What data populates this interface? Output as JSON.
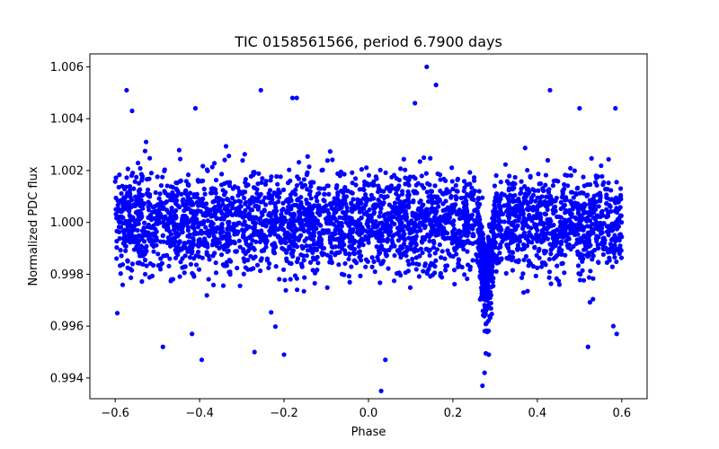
{
  "chart_data": {
    "type": "scatter",
    "title": "TIC 0158561566, period 6.7900 days",
    "xlabel": "Phase",
    "ylabel": "Normalized PDC flux",
    "xlim": [
      -0.66,
      0.66
    ],
    "ylim": [
      0.9932,
      1.0065
    ],
    "xticks": [
      -0.6,
      -0.4,
      -0.2,
      0.0,
      0.2,
      0.4,
      0.6
    ],
    "xtick_labels": [
      "−0.6",
      "−0.4",
      "−0.2",
      "0.0",
      "0.2",
      "0.4",
      "0.6"
    ],
    "yticks": [
      0.994,
      0.996,
      0.998,
      1.0,
      1.002,
      1.004,
      1.006
    ],
    "ytick_labels": [
      "0.994",
      "0.996",
      "0.998",
      "1.000",
      "1.002",
      "1.004",
      "1.006"
    ],
    "marker_color": "#0000ff",
    "series": [
      {
        "name": "PDC flux",
        "phase_range": [
          -0.6,
          0.6
        ],
        "baseline_flux": 1.0,
        "point_scatter_sigma": 0.001,
        "transit": {
          "center_phase": 0.28,
          "half_width_phase": 0.02,
          "depth": 0.0022
        },
        "notable_points": [
          {
            "x": -0.573,
            "y": 1.0051
          },
          {
            "x": -0.56,
            "y": 1.0043
          },
          {
            "x": -0.487,
            "y": 0.9952
          },
          {
            "x": -0.395,
            "y": 0.9947
          },
          {
            "x": -0.418,
            "y": 0.9957
          },
          {
            "x": -0.41,
            "y": 1.0044
          },
          {
            "x": -0.255,
            "y": 1.0051
          },
          {
            "x": -0.27,
            "y": 0.995
          },
          {
            "x": -0.2,
            "y": 0.9949
          },
          {
            "x": -0.17,
            "y": 1.0048
          },
          {
            "x": -0.18,
            "y": 1.0048
          },
          {
            "x": 0.03,
            "y": 0.9935
          },
          {
            "x": 0.04,
            "y": 0.9947
          },
          {
            "x": 0.138,
            "y": 1.006
          },
          {
            "x": 0.16,
            "y": 1.0053
          },
          {
            "x": 0.11,
            "y": 1.0046
          },
          {
            "x": 0.27,
            "y": 0.9937
          },
          {
            "x": 0.275,
            "y": 0.9942
          },
          {
            "x": 0.285,
            "y": 0.9949
          },
          {
            "x": 0.43,
            "y": 1.0051
          },
          {
            "x": 0.5,
            "y": 1.0044
          },
          {
            "x": 0.52,
            "y": 0.9952
          },
          {
            "x": 0.585,
            "y": 1.0044
          },
          {
            "x": 0.588,
            "y": 0.9957
          },
          {
            "x": -0.595,
            "y": 0.9965
          },
          {
            "x": 0.58,
            "y": 0.996
          }
        ]
      }
    ]
  }
}
